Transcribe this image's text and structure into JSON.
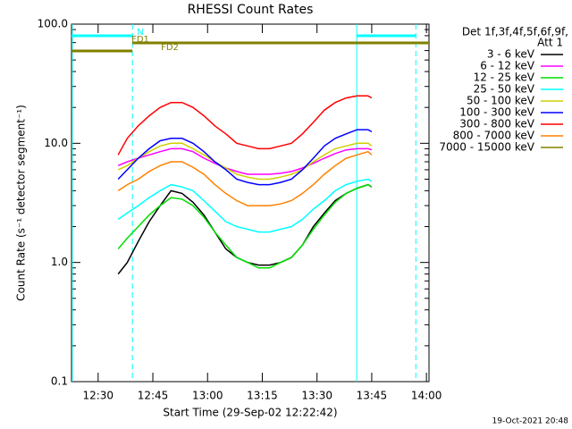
{
  "chart_data": {
    "type": "line",
    "title": "RHESSI Count Rates",
    "xlabel": "Start Time (29-Sep-02 12:22:42)",
    "ylabel": "Count Rate (s⁻¹ detector segment⁻¹)",
    "legend_title": [
      "Det 1f,3f,4f,5f,6f,9f,",
      "Att 1"
    ],
    "timestamp": "19-Oct-2021 20:48",
    "log_y": true,
    "legend": "right",
    "xlim": [
      742.7,
      840.7
    ],
    "ylim": [
      0.1,
      100
    ],
    "xticks": [
      {
        "value": 750,
        "label": "12:30"
      },
      {
        "value": 765,
        "label": "12:45"
      },
      {
        "value": 780,
        "label": "13:00"
      },
      {
        "value": 795,
        "label": "13:15"
      },
      {
        "value": 810,
        "label": "13:30"
      },
      {
        "value": 825,
        "label": "13:45"
      },
      {
        "value": 840,
        "label": "14:00"
      }
    ],
    "yticks": [
      0.1,
      {
        "value": 1,
        "label": "1.0"
      },
      {
        "value": 10,
        "label": "10.0"
      },
      {
        "value": 100,
        "label": "100.0"
      }
    ],
    "x": [
      755.5,
      758,
      761,
      764,
      767,
      770,
      773,
      776,
      779,
      782,
      785,
      788,
      791,
      794,
      797,
      800,
      803,
      806,
      809,
      812,
      815,
      818,
      821,
      824,
      825
    ],
    "series": [
      {
        "name": "3 - 6 keV",
        "color": "#000000",
        "values": [
          0.8,
          1,
          1.5,
          2.2,
          3,
          4,
          3.8,
          3.2,
          2.5,
          1.8,
          1.3,
          1.1,
          1,
          0.95,
          0.95,
          1,
          1.1,
          1.4,
          2,
          2.6,
          3.3,
          3.8,
          4.2,
          4.5,
          4.3
        ]
      },
      {
        "name": "6 - 12 keV",
        "color": "#ff00ff",
        "values": [
          6.5,
          7,
          7.5,
          8,
          8.5,
          9,
          9,
          8.5,
          7.5,
          6.8,
          6.2,
          5.8,
          5.5,
          5.5,
          5.5,
          5.6,
          5.8,
          6.2,
          6.8,
          7.5,
          8.2,
          8.8,
          9,
          9,
          8.8
        ]
      },
      {
        "name": "12 - 25 keV",
        "color": "#00e000",
        "values": [
          1.3,
          1.6,
          2,
          2.5,
          3,
          3.5,
          3.4,
          3,
          2.4,
          1.8,
          1.4,
          1.1,
          1,
          0.9,
          0.9,
          1,
          1.1,
          1.4,
          1.9,
          2.5,
          3.2,
          3.8,
          4.2,
          4.5,
          4.3
        ]
      },
      {
        "name": "25 - 50 keV",
        "color": "#00ffff",
        "values": [
          2.3,
          2.6,
          3,
          3.5,
          4,
          4.5,
          4.3,
          4,
          3.3,
          2.7,
          2.2,
          2,
          1.9,
          1.8,
          1.8,
          1.9,
          2,
          2.3,
          2.8,
          3.3,
          4,
          4.5,
          4.8,
          5,
          4.8
        ]
      },
      {
        "name": "50 - 100 keV",
        "color": "#d0d000",
        "values": [
          6,
          6.5,
          7.5,
          8.5,
          9.5,
          10,
          10,
          9,
          8,
          7,
          6.2,
          5.5,
          5.2,
          5,
          5,
          5.2,
          5.5,
          6,
          7,
          8,
          9,
          9.5,
          10,
          10,
          9.5
        ]
      },
      {
        "name": "100 - 300 keV",
        "color": "#0000ff",
        "values": [
          5,
          6,
          7.5,
          9,
          10.5,
          11,
          11,
          10,
          8.5,
          7,
          6,
          5,
          4.7,
          4.5,
          4.5,
          4.7,
          5,
          6,
          7.5,
          9.5,
          11,
          12,
          13,
          13,
          12.5
        ]
      },
      {
        "name": "300 - 800 keV",
        "color": "#ff0000",
        "values": [
          8,
          11,
          14,
          17,
          20,
          22,
          22,
          20,
          17,
          14,
          12,
          10,
          9.5,
          9,
          9,
          9.5,
          10,
          12,
          15,
          19,
          22,
          24,
          25,
          25,
          24
        ]
      },
      {
        "name": "800 - 7000 keV",
        "color": "#ff8000",
        "values": [
          4,
          4.5,
          5,
          5.8,
          6.5,
          7,
          7,
          6.3,
          5.5,
          4.5,
          3.8,
          3.3,
          3,
          3,
          3,
          3.1,
          3.3,
          3.8,
          4.5,
          5.5,
          6.5,
          7.5,
          8,
          8.5,
          8
        ]
      },
      {
        "name": "7000 - 15000 keV",
        "color": "#808000",
        "values": [
          null,
          null,
          null,
          null,
          null,
          null,
          null,
          null,
          null,
          null,
          null,
          null,
          null,
          null,
          null,
          null,
          null,
          null,
          null,
          null,
          null,
          null,
          null,
          null,
          null
        ]
      }
    ],
    "flags": [
      {
        "label": "N",
        "color": "#00ffff",
        "segments": [
          [
            742.7,
            759.4
          ],
          [
            820.9,
            837.1
          ]
        ]
      },
      {
        "label": "FD1",
        "color": "#808000",
        "segments": [
          [
            759.4,
            840.7
          ]
        ]
      },
      {
        "label": "FD2",
        "color": "#808000",
        "segments": [
          [
            742.7,
            759.4
          ]
        ]
      }
    ],
    "vline_color": "#00ffff",
    "solid_lines": [
      742.9,
      820.9
    ],
    "dashed_lines": [
      759.4,
      837.1
    ]
  }
}
